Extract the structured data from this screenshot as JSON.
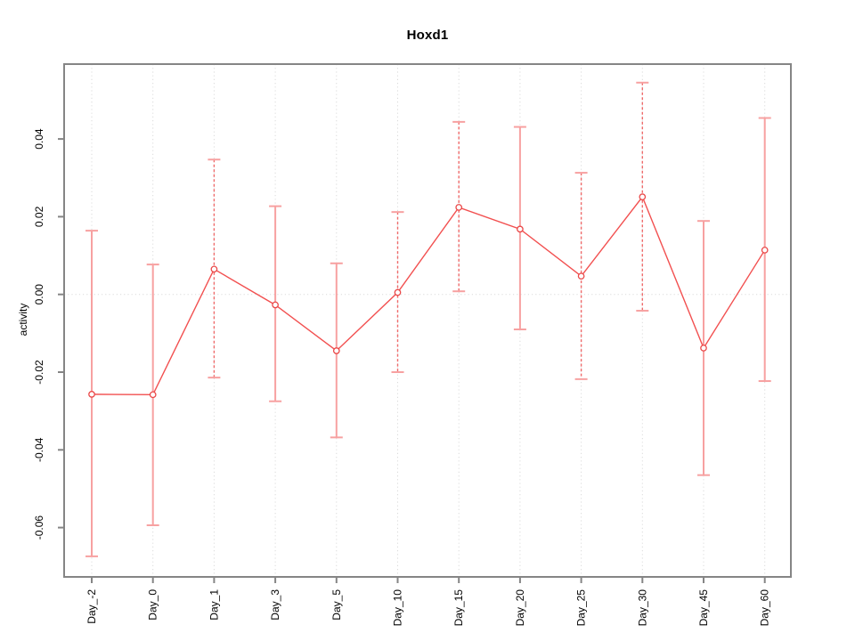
{
  "window": {
    "background": "#ffffff"
  },
  "chart_data": {
    "type": "line",
    "title": "Hoxd1",
    "xlabel": "",
    "ylabel": "activity",
    "categories": [
      "Day_-2",
      "Day_0",
      "Day_1",
      "Day_3",
      "Day_5",
      "Day_10",
      "Day_15",
      "Day_20",
      "Day_25",
      "Day_30",
      "Day_45",
      "Day_60"
    ],
    "series": [
      {
        "name": "activity",
        "values": [
          -0.0257,
          -0.0258,
          0.0065,
          -0.0027,
          -0.0145,
          0.0005,
          0.0224,
          0.0168,
          0.0047,
          0.0251,
          -0.0138,
          0.0114
        ],
        "error_upper": [
          0.0164,
          0.0077,
          0.0347,
          0.0227,
          0.008,
          0.0212,
          0.0444,
          0.0431,
          0.0313,
          0.0545,
          0.0189,
          0.0454
        ],
        "error_lower": [
          -0.0674,
          -0.0594,
          -0.0214,
          -0.0275,
          -0.0368,
          -0.02,
          0.0008,
          -0.009,
          -0.0218,
          -0.0042,
          -0.0465,
          -0.0223
        ]
      }
    ],
    "error_bar_dashed": [
      false,
      false,
      true,
      false,
      false,
      true,
      true,
      false,
      true,
      true,
      false,
      false
    ],
    "y_ticks": [
      0.04,
      0.02,
      0.0,
      -0.02,
      -0.04,
      -0.06
    ],
    "y_tick_labels": [
      "0.04",
      "0.02",
      "0.00",
      "-0.02",
      "-0.04",
      "-0.06"
    ],
    "ylim": [
      -0.0709,
      0.0593
    ],
    "grid": {
      "vertical_dotted_per_category": true,
      "horizontal_dotted_at_zero": true
    },
    "legend": "none",
    "marker": "open-circle",
    "colors": {
      "point": "#ea4848",
      "line": "#f25050",
      "error_bar": "#f7a1a1",
      "error_bar_dashed": "#ef6a6a",
      "grid": "#dadada",
      "axis": "#858585",
      "text": "#000000"
    }
  }
}
